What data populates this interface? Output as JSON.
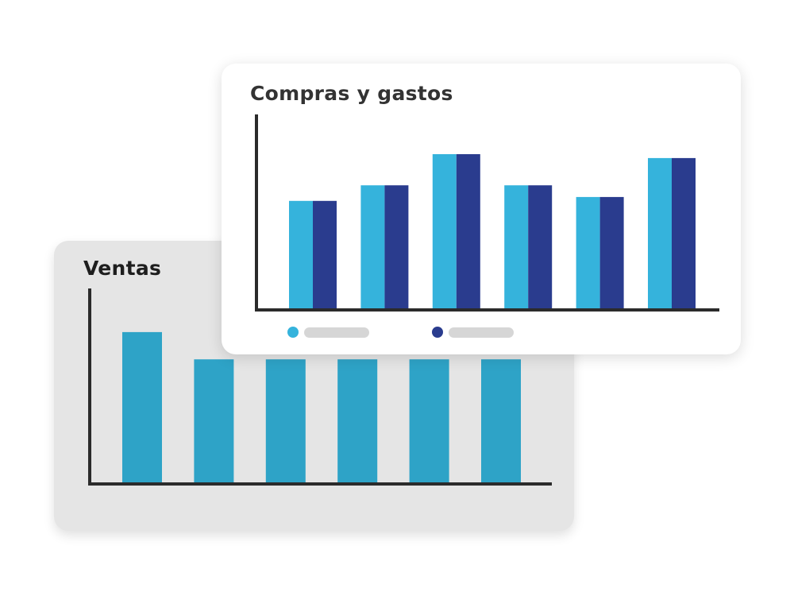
{
  "colors": {
    "ventas_bar": "#2ea3c7",
    "series_light": "#35b3dc",
    "series_dark": "#2a3c8e",
    "axis": "#2b2b2b",
    "legend_placeholder": "#d6d6d6"
  },
  "chart_data": [
    {
      "type": "bar",
      "title": "Ventas",
      "xlabel": "",
      "ylabel": "",
      "ylim": [
        0,
        100
      ],
      "series": [
        {
          "color": "#2ea3c7",
          "values": [
            78,
            64,
            64,
            64,
            64,
            64
          ]
        }
      ],
      "grid": false,
      "legend": "none"
    },
    {
      "type": "bar",
      "title": "Compras y gastos",
      "xlabel": "",
      "ylabel": "",
      "ylim": [
        0,
        100
      ],
      "series": [
        {
          "color": "#35b3dc",
          "values": [
            56,
            64,
            80,
            64,
            58,
            78
          ]
        },
        {
          "color": "#2a3c8e",
          "values": [
            56,
            64,
            80,
            64,
            58,
            78
          ]
        }
      ],
      "grid": false,
      "legend": "bottom-left"
    }
  ]
}
